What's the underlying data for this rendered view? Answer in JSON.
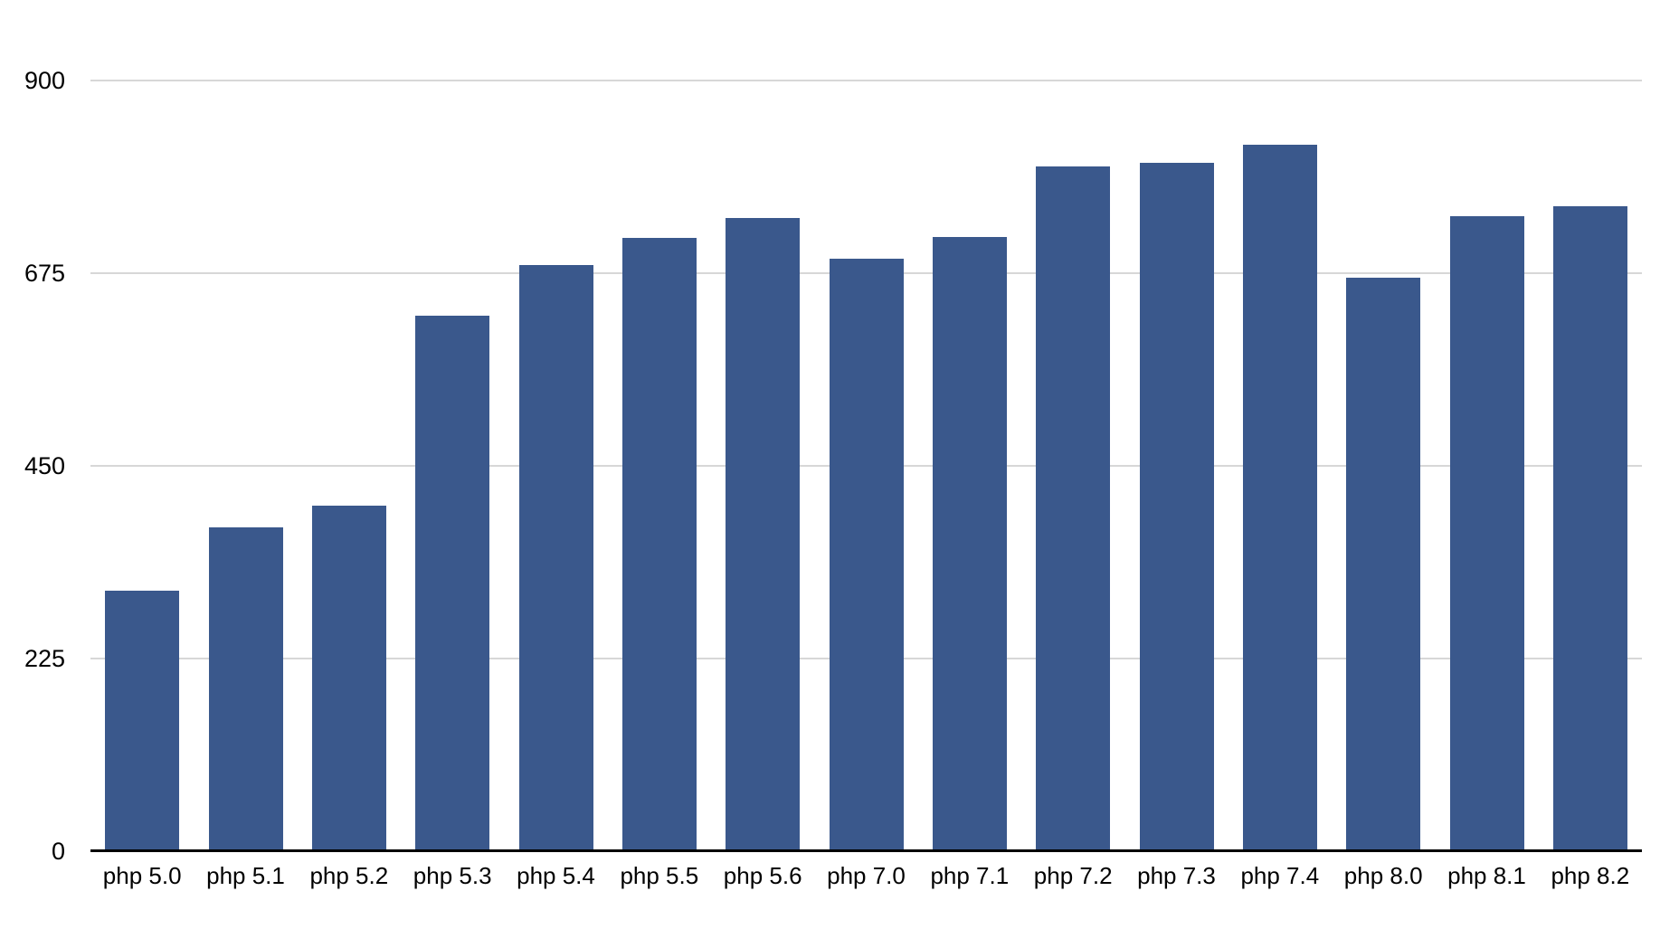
{
  "chart_data": {
    "type": "bar",
    "title": "",
    "xlabel": "",
    "ylabel": "",
    "categories": [
      "php 5.0",
      "php 5.1",
      "php 5.2",
      "php 5.3",
      "php 5.4",
      "php 5.5",
      "php 5.6",
      "php 7.0",
      "php 7.1",
      "php 7.2",
      "php 7.3",
      "php 7.4",
      "php 8.0",
      "php 8.1",
      "php 8.2"
    ],
    "values": [
      303,
      377,
      403,
      624,
      683,
      715,
      738,
      691,
      716,
      799,
      803,
      824,
      669,
      741,
      752
    ],
    "ylim": [
      0,
      900
    ],
    "yticks": [
      900,
      675,
      450,
      225,
      0
    ],
    "grid": true,
    "legend": false,
    "colors": {
      "bar": "#3A588C",
      "gridline": "#D7D7D7",
      "axis_line": "#000000",
      "text": "#000000",
      "background": "#FFFFFF"
    }
  }
}
